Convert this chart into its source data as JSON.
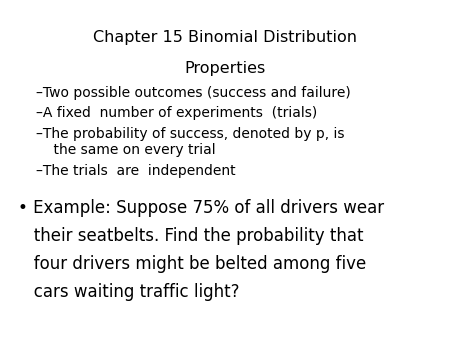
{
  "title": "Chapter 15 Binomial Distribution",
  "subtitle": "Properties",
  "dash_items": [
    "–Two possible outcomes (success and failure)",
    "–A fixed  number of experiments  (trials)",
    "–The probability of success, denoted by p, is\n    the same on every trial",
    "–The trials  are  independent"
  ],
  "example_line1": "• Example: Suppose 75% of all drivers wear",
  "example_line2": "   their seatbelts. Find the probability that",
  "example_line3": "   four drivers might be belted among five",
  "example_line4": "   cars waiting traffic light?",
  "bg_color": "#ffffff",
  "text_color": "#000000",
  "title_fontsize": 11.5,
  "subtitle_fontsize": 11.5,
  "bullet_fontsize": 10,
  "example_fontsize": 12
}
